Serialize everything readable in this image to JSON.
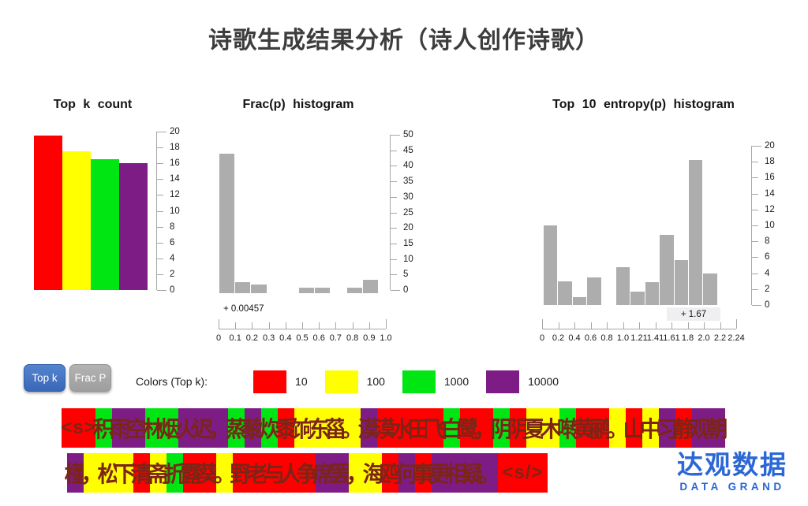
{
  "title": "诗歌生成结果分析（诗人创作诗歌）",
  "chart_data": [
    {
      "id": "topk",
      "type": "bar",
      "title": "Top k count",
      "categories": [
        "10",
        "100",
        "1000",
        "10000"
      ],
      "values": [
        19.5,
        17.5,
        16.5,
        16
      ],
      "bar_colors": [
        "#ff0000",
        "#ffff00",
        "#00e613",
        "#7d1c85"
      ],
      "ylim": [
        0,
        20
      ],
      "yticks": [
        "20",
        "18",
        "16",
        "14",
        "12",
        "10",
        "8",
        "6",
        "4",
        "2",
        "0"
      ],
      "grid": false,
      "legend_position": "bottom-external"
    },
    {
      "id": "fracp",
      "type": "histogram",
      "title": "Frac(p)  histogram",
      "x": [
        "0",
        "0.1",
        "0.2",
        "0.3",
        "0.4",
        "0.5",
        "0.6",
        "0.7",
        "0.8",
        "0.9",
        "1.0"
      ],
      "values": [
        45,
        3.5,
        2.7,
        0,
        0,
        1.9,
        1.9,
        0,
        1.9,
        4.2
      ],
      "bar_color": "#aeadad",
      "ylim": [
        0,
        50
      ],
      "yticks": [
        "50",
        "45",
        "40",
        "35",
        "30",
        "25",
        "20",
        "15",
        "10",
        "5",
        "0"
      ],
      "offset_annotation": "+ 0.00457",
      "grid": false
    },
    {
      "id": "entropy",
      "type": "histogram",
      "title": "Top 10 entropy(p)  histogram",
      "x": [
        "0",
        "0.2",
        "0.4",
        "0.6",
        "0.8",
        "1.0",
        "1.21",
        "1.41",
        "1.61",
        "1.8",
        "2.0",
        "2.2",
        "2.24"
      ],
      "values": [
        10,
        3,
        1,
        3.5,
        0,
        4.8,
        1.7,
        2.9,
        8.8,
        5.6,
        18.2,
        4
      ],
      "bar_color": "#aeadad",
      "ylim": [
        0,
        20
      ],
      "yticks": [
        "20",
        "18",
        "16",
        "14",
        "12",
        "10",
        "8",
        "6",
        "4",
        "2",
        "0"
      ],
      "offset_annotation": "+ 1.67",
      "grid": false
    }
  ],
  "controls": {
    "topk_button": "Top k",
    "fracp_button": "Frac P",
    "legend_title": "Colors (Top k):",
    "legend": [
      {
        "color": "#ff0000",
        "label": "10"
      },
      {
        "color": "#ffff00",
        "label": "100"
      },
      {
        "color": "#00e613",
        "label": "1000"
      },
      {
        "color": "#7d1c85",
        "label": "10000"
      }
    ]
  },
  "poem": {
    "colors": {
      "r": "#ff0000",
      "y": "#ffff00",
      "g": "#00e613",
      "p": "#7d1c85"
    },
    "text_color": "#7c2517",
    "line1": [
      {
        "t": "<s>",
        "k": "r"
      },
      {
        "t": "积",
        "k": "g"
      },
      {
        "t": "雨",
        "k": "p"
      },
      {
        "t": "空",
        "k": "p"
      },
      {
        "t": "林",
        "k": "g"
      },
      {
        "t": "烟",
        "k": "g"
      },
      {
        "t": "火",
        "k": "p"
      },
      {
        "t": "迟",
        "k": "p"
      },
      {
        "t": "，",
        "k": "p"
      },
      {
        "t": "蒸",
        "k": "g"
      },
      {
        "t": "藜",
        "k": "p"
      },
      {
        "t": "炊",
        "k": "g"
      },
      {
        "t": "黍",
        "k": "r"
      },
      {
        "t": "饷",
        "k": "y"
      },
      {
        "t": "东",
        "k": "y"
      },
      {
        "t": "菑",
        "k": "y"
      },
      {
        "t": "。",
        "k": "y"
      },
      {
        "t": "漠",
        "k": "p"
      },
      {
        "t": "漠",
        "k": "r"
      },
      {
        "t": "水",
        "k": "r"
      },
      {
        "t": "田",
        "k": "r"
      },
      {
        "t": "飞",
        "k": "r"
      },
      {
        "t": "白",
        "k": "g"
      },
      {
        "t": "鹭",
        "k": "r"
      },
      {
        "t": "，",
        "k": "r"
      },
      {
        "t": "阴",
        "k": "g"
      },
      {
        "t": "阴",
        "k": "r"
      },
      {
        "t": "夏",
        "k": "y"
      },
      {
        "t": "木",
        "k": "y"
      },
      {
        "t": "啭",
        "k": "g"
      },
      {
        "t": "黄",
        "k": "r"
      },
      {
        "t": "鹂",
        "k": "r"
      },
      {
        "t": "。",
        "k": "y"
      },
      {
        "t": "山",
        "k": "r"
      },
      {
        "t": "中",
        "k": "y"
      },
      {
        "t": "习",
        "k": "p"
      },
      {
        "t": "静",
        "k": "r"
      },
      {
        "t": "观",
        "k": "p"
      },
      {
        "t": "朝",
        "k": "p"
      }
    ],
    "line2": [
      {
        "t": "槿",
        "k": "p"
      },
      {
        "t": "，",
        "k": "y"
      },
      {
        "t": "松",
        "k": "y"
      },
      {
        "t": "下",
        "k": "y"
      },
      {
        "t": "清",
        "k": "r"
      },
      {
        "t": "斋",
        "k": "y"
      },
      {
        "t": "折",
        "k": "g"
      },
      {
        "t": "露",
        "k": "r"
      },
      {
        "t": "葵",
        "k": "r"
      },
      {
        "t": "。",
        "k": "y"
      },
      {
        "t": "野",
        "k": "r"
      },
      {
        "t": "老",
        "k": "r"
      },
      {
        "t": "与",
        "k": "r"
      },
      {
        "t": "人",
        "k": "r"
      },
      {
        "t": "争",
        "k": "r"
      },
      {
        "t": "席",
        "k": "p"
      },
      {
        "t": "罢",
        "k": "p"
      },
      {
        "t": "，",
        "k": "y"
      },
      {
        "t": "海",
        "k": "y"
      },
      {
        "t": "鸥",
        "k": "r"
      },
      {
        "t": "何",
        "k": "p"
      },
      {
        "t": "事",
        "k": "r"
      },
      {
        "t": "更",
        "k": "p"
      },
      {
        "t": "相",
        "k": "p"
      },
      {
        "t": "疑",
        "k": "p"
      },
      {
        "t": "。",
        "k": "p"
      },
      {
        "t": "<s/>",
        "k": "r"
      }
    ]
  },
  "logo": {
    "cn": "达观数据",
    "en": "DATA GRAND"
  }
}
